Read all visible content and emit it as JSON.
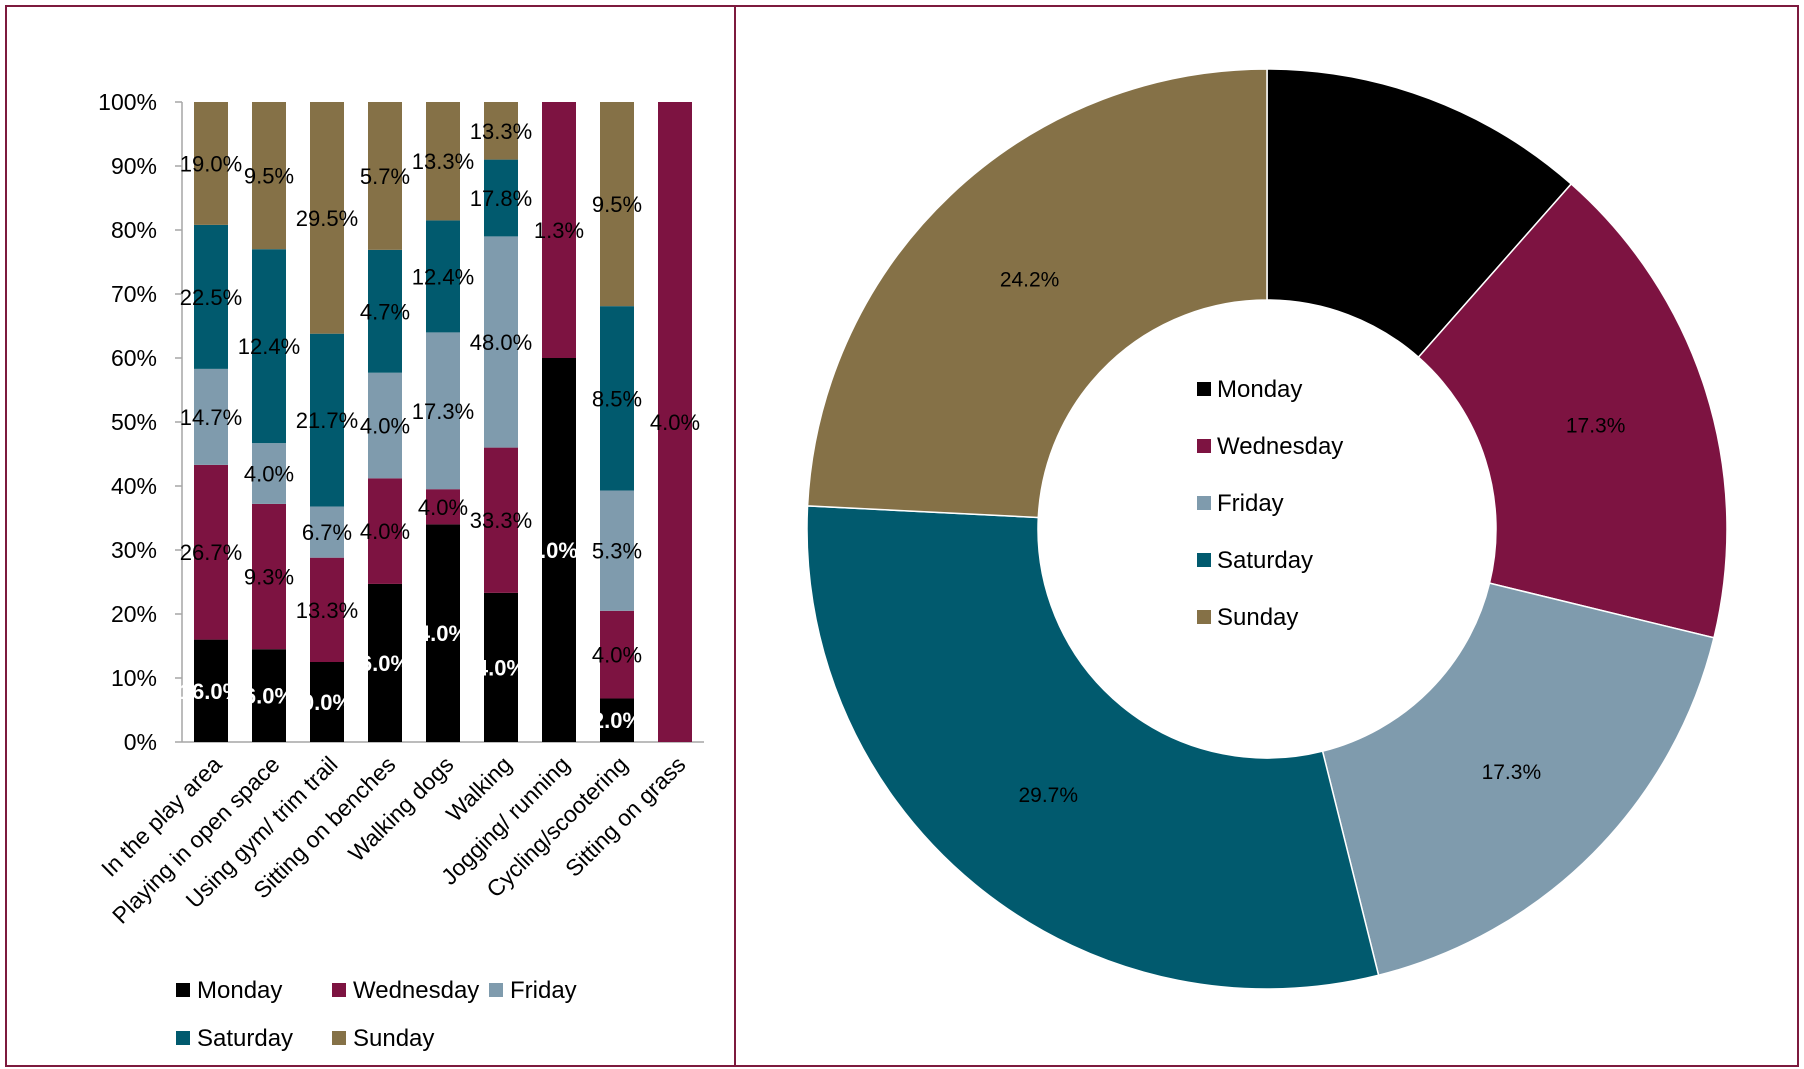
{
  "colors": {
    "border": "#7d1a3e",
    "axis": "#a6a6a6",
    "series": {
      "Monday": "#000000",
      "Wednesday": "#7d1341",
      "Friday": "#7f9bad",
      "Saturday": "#015a6e",
      "Sunday": "#857147"
    }
  },
  "chart_data": [
    {
      "type": "bar",
      "stacked": "percent",
      "y_ticks": [
        "0%",
        "10%",
        "20%",
        "30%",
        "40%",
        "50%",
        "60%",
        "70%",
        "80%",
        "90%",
        "100%"
      ],
      "ylim": [
        0,
        100
      ],
      "legend_position": "bottom",
      "categories": [
        "In the play area",
        "Playing in open space",
        "Using gym/ trim trail",
        "Sitting on benches",
        "Walking dogs",
        "Walking",
        "Jogging/ running",
        "Cycling/scootering",
        "Sitting on grass"
      ],
      "series": [
        {
          "name": "Monday",
          "color": "#000000",
          "label_color": "#ffffff",
          "values": [
            16,
            14.5,
            12.5,
            24.7,
            34,
            23.3,
            60,
            6.8,
            0
          ],
          "labels": [
            "16.0%",
            "6.0%",
            "0.0%",
            "6.0%",
            "4.0%",
            "4.0%",
            ".0%",
            "2.0%",
            ""
          ]
        },
        {
          "name": "Wednesday",
          "color": "#7d1341",
          "label_color": "#000000",
          "values": [
            27.3,
            22.7,
            16.3,
            16.5,
            5.5,
            22.7,
            40,
            13.7,
            100
          ],
          "labels": [
            "26.7%",
            "9.3%",
            "13.3%",
            "4.0%",
            "4.0%",
            "33.3%",
            "1.3%",
            "4.0%",
            "4.0%"
          ]
        },
        {
          "name": "Friday",
          "color": "#7f9bad",
          "label_color": "#000000",
          "values": [
            15,
            9.5,
            8,
            16.5,
            24.5,
            33,
            0,
            18.8,
            0
          ],
          "labels": [
            "14.7%",
            "4.0%",
            "6.7%",
            "4.0%",
            "17.3%",
            "48.0%",
            "",
            "5.3%",
            ""
          ]
        },
        {
          "name": "Saturday",
          "color": "#015a6e",
          "label_color": "#000000",
          "values": [
            22.5,
            30.3,
            27,
            19.2,
            17.5,
            12,
            0,
            28.8,
            0
          ],
          "labels": [
            "22.5%",
            "12.4%",
            "21.7%",
            "4.7%",
            "12.4%",
            "17.8%",
            "",
            "8.5%",
            ""
          ]
        },
        {
          "name": "Sunday",
          "color": "#857147",
          "label_color": "#000000",
          "values": [
            19.2,
            23,
            36.2,
            23.1,
            18.5,
            9,
            0,
            31.9,
            0
          ],
          "labels": [
            "19.0%",
            "9.5%",
            "29.5%",
            "5.7%",
            "13.3%",
            "13.3%",
            "",
            "9.5%",
            ""
          ]
        }
      ]
    },
    {
      "type": "pie",
      "variant": "donut",
      "legend_position": "center",
      "categories": [
        "Monday",
        "Wednesday",
        "Friday",
        "Saturday",
        "Sunday"
      ],
      "values": [
        11.5,
        17.3,
        17.3,
        29.7,
        24.2
      ],
      "labels": [
        "11.5%",
        "17.3%",
        "17.3%",
        "29.7%",
        "24.2%"
      ],
      "colors": [
        "#000000",
        "#7d1341",
        "#7f9bad",
        "#015a6e",
        "#857147"
      ]
    }
  ]
}
